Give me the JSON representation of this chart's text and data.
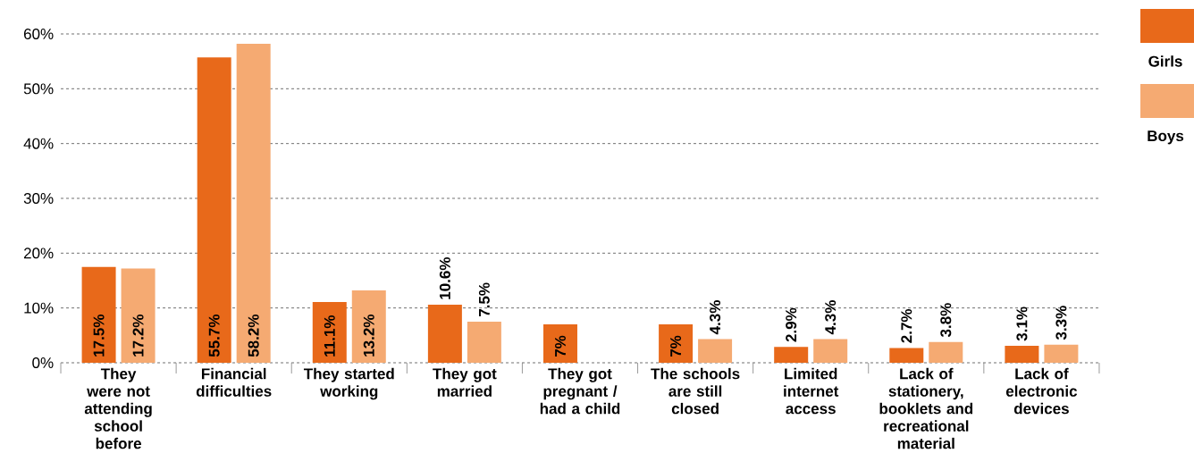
{
  "chart_data": {
    "type": "bar",
    "categories": [
      "They were not attending school before",
      "Financial difficulties",
      "They started working",
      "They got married",
      "They got pregnant / had a child",
      "The schools are still closed",
      "Limited internet access",
      "Lack of stationery, booklets and recreational material",
      "Lack of electronic devices"
    ],
    "series": [
      {
        "name": "Girls",
        "color": "#e8691a",
        "values": [
          17.5,
          55.7,
          11.1,
          10.6,
          7,
          7,
          2.9,
          2.7,
          3.1
        ],
        "value_labels": [
          "17.5%",
          "55.7%",
          "11.1%",
          "10.6%",
          "7%",
          "7%",
          "2.9%",
          "2.7%",
          "3.1%"
        ]
      },
      {
        "name": "Boys",
        "color": "#f5aa72",
        "values": [
          17.2,
          58.2,
          13.2,
          7.5,
          null,
          4.3,
          4.3,
          3.8,
          3.3
        ],
        "value_labels": [
          "17.2%",
          "58.2%",
          "13.2%",
          "7.5%",
          null,
          "4.3%",
          "4.3%",
          "3.8%",
          "3.3%"
        ]
      }
    ],
    "ylim": [
      0,
      60
    ],
    "yticks": [
      {
        "value": 0,
        "label": "0%"
      },
      {
        "value": 10,
        "label": "10%"
      },
      {
        "value": 20,
        "label": "20%"
      },
      {
        "value": 30,
        "label": "30%"
      },
      {
        "value": 40,
        "label": "40%"
      },
      {
        "value": 50,
        "label": "50%"
      },
      {
        "value": 60,
        "label": "60%"
      }
    ],
    "grid": "y",
    "legend": "top right"
  }
}
